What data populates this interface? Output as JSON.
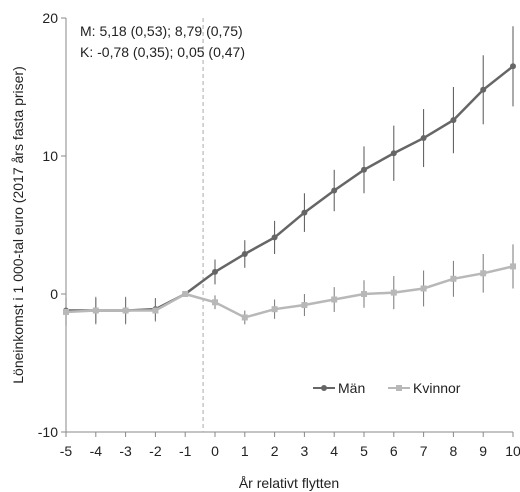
{
  "chart_data": {
    "type": "line",
    "xlabel": "År relativt flytten",
    "ylabel": "Löneinkomst i 1 000-tal euro (2017 års fasta priser)",
    "xlim": [
      -5,
      10
    ],
    "ylim": [
      -10,
      20
    ],
    "x_ticks": [
      -5,
      -4,
      -3,
      -2,
      -1,
      0,
      1,
      2,
      3,
      4,
      5,
      6,
      7,
      8,
      9,
      10
    ],
    "y_ticks": [
      -10,
      0,
      10,
      20
    ],
    "x": [
      -5,
      -4,
      -3,
      -2,
      -1,
      0,
      1,
      2,
      3,
      4,
      5,
      6,
      7,
      8,
      9,
      10
    ],
    "event_marker_x": -0.4,
    "annotations": [
      "M: 5,18 (0,53); 8,79 (0,75)",
      "K: -0,78 (0,35); 0,05 (0,47)"
    ],
    "legend_position": "bottom-right",
    "grid": false,
    "series": [
      {
        "name": "Män",
        "color": "#666666",
        "values": [
          -1.2,
          -1.2,
          -1.2,
          -1.1,
          0.0,
          1.6,
          2.9,
          4.1,
          5.9,
          7.5,
          9.0,
          10.2,
          11.3,
          12.6,
          14.8,
          16.5
        ],
        "err": [
          0.9,
          0.9,
          0.9,
          0.8,
          0.0,
          0.9,
          1.0,
          1.2,
          1.4,
          1.5,
          1.7,
          2.0,
          2.1,
          2.4,
          2.5,
          2.9
        ]
      },
      {
        "name": "Kvinnor",
        "color": "#b8b8b8",
        "values": [
          -1.3,
          -1.2,
          -1.2,
          -1.2,
          0.0,
          -0.6,
          -1.7,
          -1.1,
          -0.8,
          -0.4,
          0.0,
          0.1,
          0.4,
          1.1,
          1.5,
          2.0
        ],
        "err": [
          1.0,
          1.0,
          1.0,
          0.8,
          0.0,
          0.5,
          0.5,
          0.7,
          0.8,
          0.9,
          1.0,
          1.2,
          1.3,
          1.3,
          1.4,
          1.6
        ]
      }
    ]
  }
}
